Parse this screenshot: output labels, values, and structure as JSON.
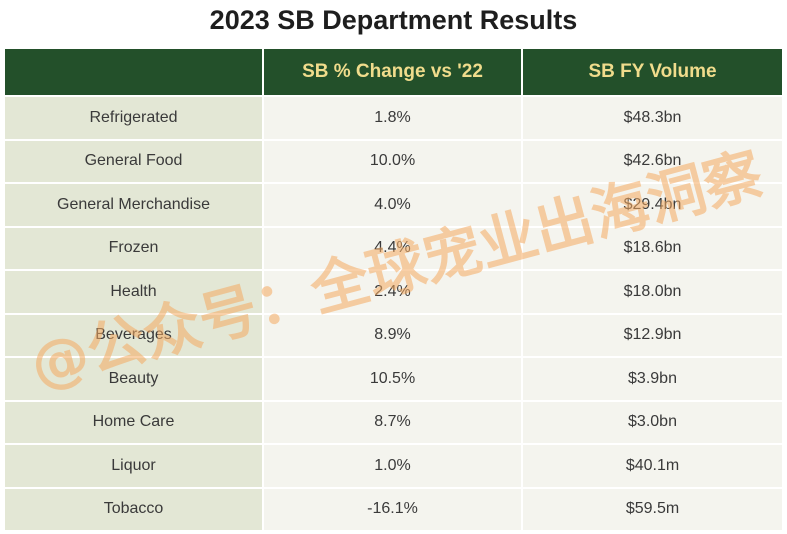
{
  "chart_data": {
    "type": "table",
    "title": "2023 SB Department Results",
    "columns": [
      "",
      "SB % Change vs '22",
      "SB FY Volume"
    ],
    "rows": [
      {
        "department": "Refrigerated",
        "change": "1.8%",
        "volume": "$48.3bn"
      },
      {
        "department": "General Food",
        "change": "10.0%",
        "volume": "$42.6bn"
      },
      {
        "department": "General Merchandise",
        "change": "4.0%",
        "volume": "$29.4bn"
      },
      {
        "department": "Frozen",
        "change": "4.4%",
        "volume": "$18.6bn"
      },
      {
        "department": "Health",
        "change": "2.4%",
        "volume": "$18.0bn"
      },
      {
        "department": "Beverages",
        "change": "8.9%",
        "volume": "$12.9bn"
      },
      {
        "department": "Beauty",
        "change": "10.5%",
        "volume": "$3.9bn"
      },
      {
        "department": "Home Care",
        "change": "8.7%",
        "volume": "$3.0bn"
      },
      {
        "department": "Liquor",
        "change": "1.0%",
        "volume": "$40.1m"
      },
      {
        "department": "Tobacco",
        "change": "-16.1%",
        "volume": "$59.5m"
      }
    ]
  },
  "watermark": "@公众号：全球宠业出海洞察",
  "colors": {
    "header_bg": "#23502a",
    "header_text": "#f0dc8c",
    "first_col_bg": "#e3e7d5",
    "cell_bg": "#f4f4ee",
    "watermark": "#f4aa60"
  }
}
